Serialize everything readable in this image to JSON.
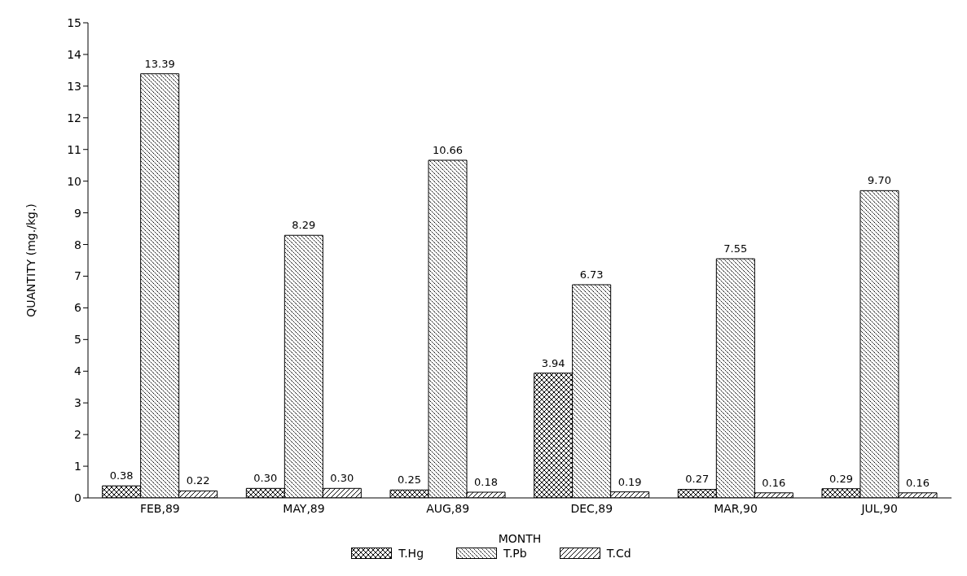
{
  "chart_data": {
    "type": "bar",
    "xlabel": "MONTH",
    "ylabel": "QUANTITY (mg./kg.)",
    "categories": [
      "FEB,89",
      "MAY,89",
      "AUG,89",
      "DEC,89",
      "MAR,90",
      "JUL,90"
    ],
    "series": [
      {
        "name": "T.Hg",
        "color": "#000000",
        "values": [
          0.38,
          0.3,
          0.25,
          3.94,
          0.27,
          0.29
        ],
        "value_labels": [
          "0.38",
          "0.30",
          "0.25",
          "3.94",
          "0.27",
          "0.29"
        ]
      },
      {
        "name": "T.Pb",
        "color": "#000000",
        "values": [
          13.39,
          8.29,
          10.66,
          6.73,
          7.55,
          9.7
        ],
        "value_labels": [
          "13.39",
          "8.29",
          "10.66",
          "6.73",
          "7.55",
          "9.70"
        ]
      },
      {
        "name": "T.Cd",
        "color": "#000000",
        "values": [
          0.22,
          0.3,
          0.18,
          0.19,
          0.16,
          0.16
        ],
        "value_labels": [
          "0.22",
          "0.30",
          "0.18",
          "0.19",
          "0.16",
          "0.16"
        ]
      }
    ],
    "ylim": [
      0,
      15
    ],
    "yticks": [
      0,
      1,
      2,
      3,
      4,
      5,
      6,
      7,
      8,
      9,
      10,
      11,
      12,
      13,
      14,
      15
    ],
    "grid": false,
    "legend": "bottom"
  }
}
